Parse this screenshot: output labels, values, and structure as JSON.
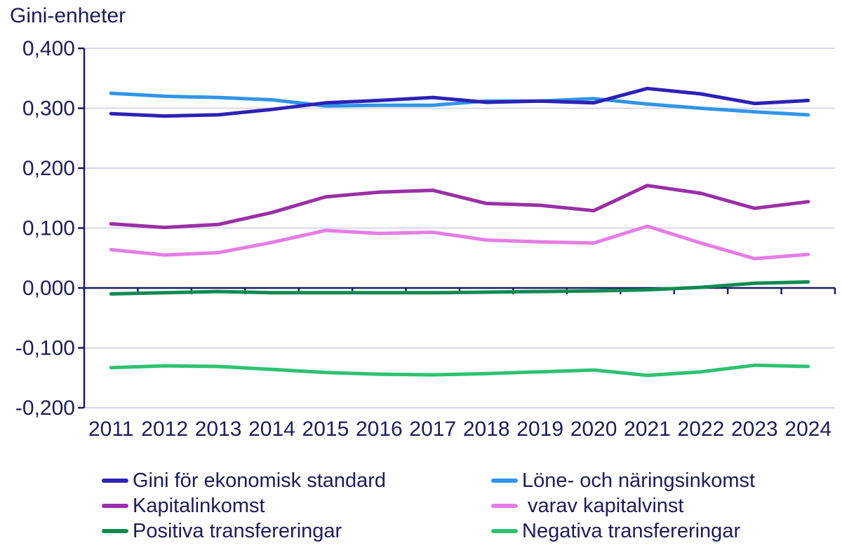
{
  "colors": {
    "background": "#ffffff",
    "text": "#1d1d56",
    "grid": "#d8d8ec",
    "axis": "#1b1b5e"
  },
  "chart_data": {
    "type": "line",
    "title": "Gini-enheter",
    "xlabel": "",
    "ylabel": "Gini-enheter",
    "categories": [
      "2011",
      "2012",
      "2013",
      "2014",
      "2015",
      "2016",
      "2017",
      "2018",
      "2019",
      "2020",
      "2021",
      "2022",
      "2023",
      "2024"
    ],
    "ylim": [
      -0.2,
      0.4
    ],
    "ytick_step": 0.1,
    "ytick_labels": [
      "0,400",
      "0,300",
      "0,200",
      "0,100",
      "0,000",
      "-0,100",
      "-0,200"
    ],
    "grid": true,
    "legend_position": "bottom",
    "series": [
      {
        "name": "Gini för ekonomisk standard",
        "color": "#2d21b6",
        "values": [
          0.291,
          0.287,
          0.289,
          0.298,
          0.309,
          0.313,
          0.318,
          0.31,
          0.312,
          0.309,
          0.333,
          0.324,
          0.308,
          0.313
        ]
      },
      {
        "name": "Löne- och näringsinkomst",
        "color": "#3095e8",
        "values": [
          0.325,
          0.32,
          0.318,
          0.314,
          0.304,
          0.305,
          0.305,
          0.312,
          0.312,
          0.316,
          0.307,
          0.3,
          0.294,
          0.289
        ]
      },
      {
        "name": "Kapitalinkomst",
        "color": "#9a2fa6",
        "values": [
          0.107,
          0.101,
          0.106,
          0.126,
          0.152,
          0.16,
          0.163,
          0.141,
          0.138,
          0.129,
          0.171,
          0.158,
          0.133,
          0.144
        ]
      },
      {
        "name": " varav kapitalvinst",
        "color": "#e47ee4",
        "values": [
          0.064,
          0.055,
          0.059,
          0.076,
          0.096,
          0.091,
          0.093,
          0.08,
          0.077,
          0.075,
          0.103,
          0.075,
          0.049,
          0.056
        ]
      },
      {
        "name": "Positiva transfereringar",
        "color": "#0f8b51",
        "values": [
          -0.01,
          -0.008,
          -0.006,
          -0.008,
          -0.008,
          -0.008,
          -0.008,
          -0.007,
          -0.006,
          -0.005,
          -0.003,
          0.001,
          0.008,
          0.01
        ]
      },
      {
        "name": "Negativa transfereringar",
        "color": "#2ec273",
        "values": [
          -0.133,
          -0.13,
          -0.131,
          -0.136,
          -0.141,
          -0.144,
          -0.145,
          -0.143,
          -0.14,
          -0.137,
          -0.146,
          -0.14,
          -0.129,
          -0.131
        ]
      }
    ]
  }
}
